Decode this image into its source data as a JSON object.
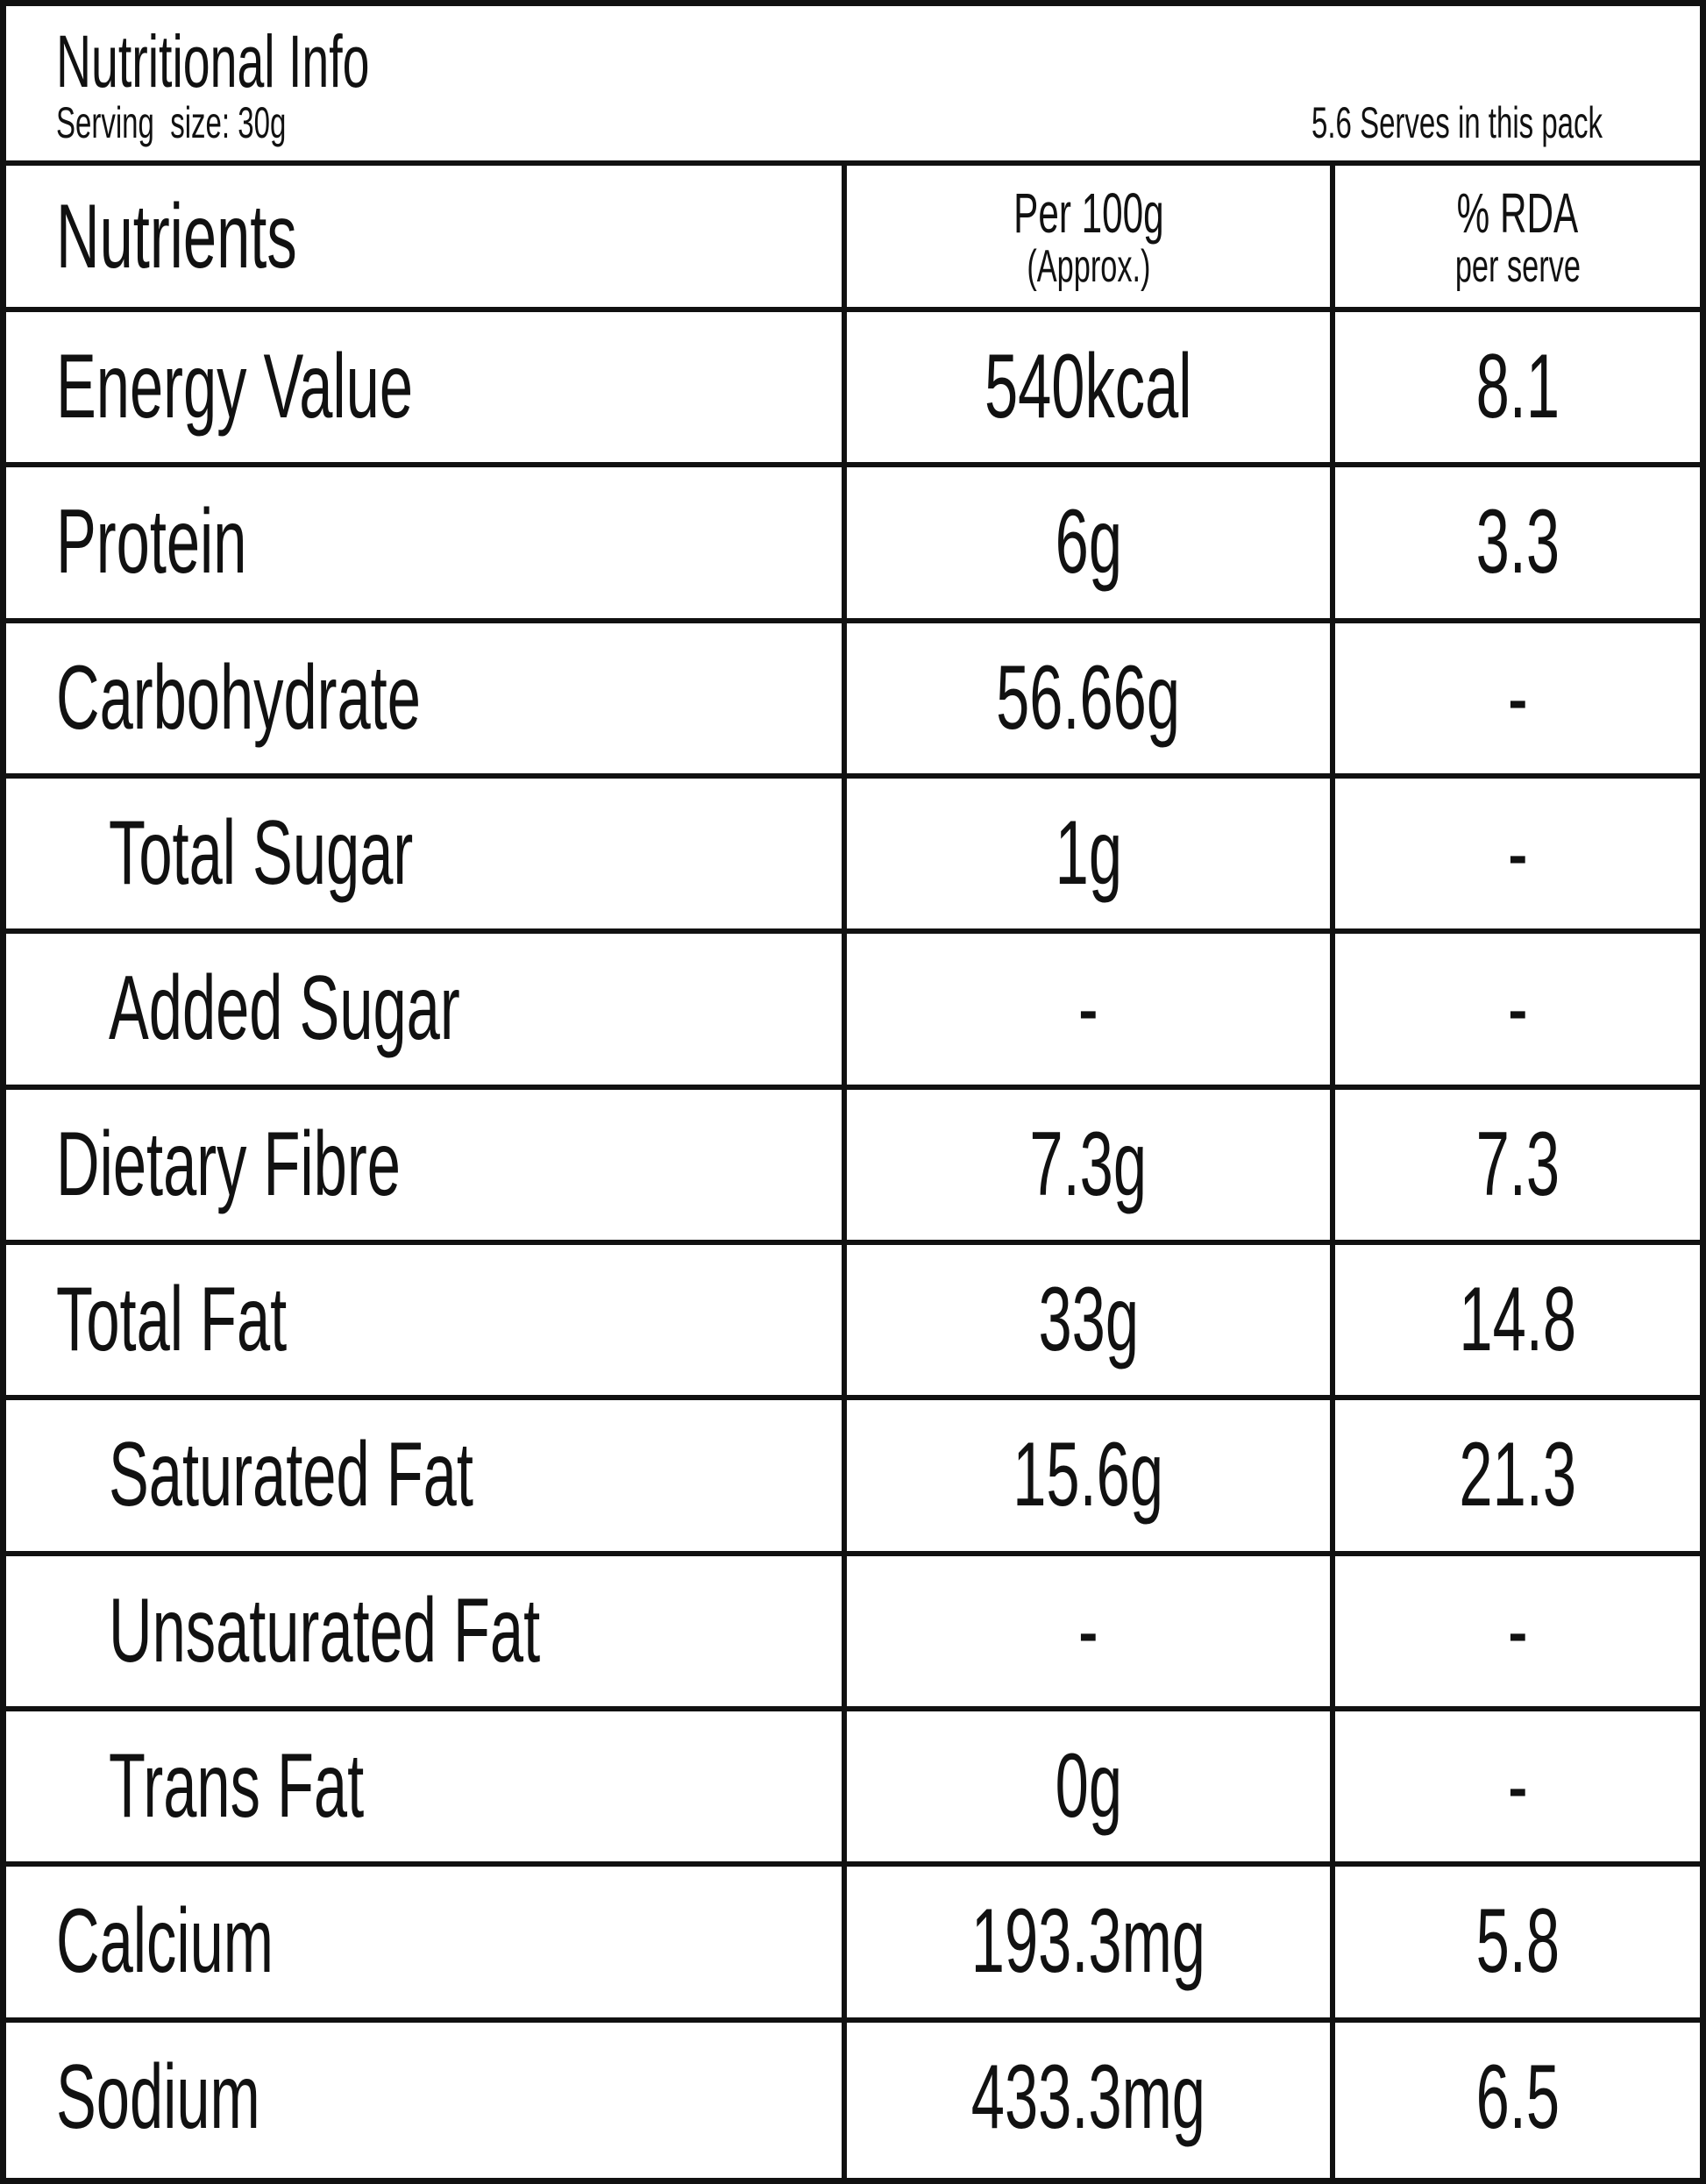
{
  "header": {
    "title": "Nutritional Info",
    "serving_size": "Serving  size: 30g",
    "serves": "5.6 Serves in this pack"
  },
  "table": {
    "columns": [
      [
        "Nutrients"
      ],
      [
        "Per 100g",
        "(Approx.)"
      ],
      [
        "% RDA",
        "per serve"
      ]
    ],
    "rows": [
      [
        "Energy Value",
        "540kcal",
        "8.1"
      ],
      [
        "Protein",
        "6g",
        "3.3"
      ],
      [
        "Carbohydrate",
        "56.66g",
        "-"
      ],
      [
        "Total Sugar",
        "1g",
        "-"
      ],
      [
        "Added Sugar",
        "-",
        "-"
      ],
      [
        "Dietary Fibre",
        "7.3g",
        "7.3"
      ],
      [
        "Total Fat",
        "33g",
        "14.8"
      ],
      [
        "Saturated Fat",
        "15.6g",
        "21.3"
      ],
      [
        "Unsaturated Fat",
        "-",
        "-"
      ],
      [
        "Trans Fat",
        "0g",
        "-"
      ],
      [
        "Calcium",
        "193.3mg",
        "5.8"
      ],
      [
        "Sodium",
        "433.3mg",
        "6.5"
      ]
    ]
  }
}
